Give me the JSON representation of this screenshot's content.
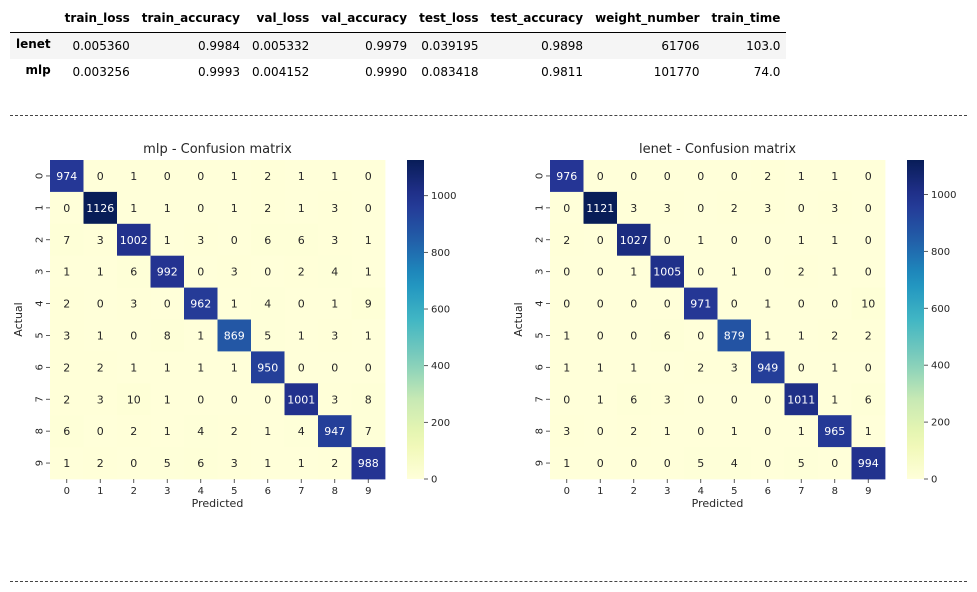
{
  "metrics_table": {
    "columns": [
      "train_loss",
      "train_accuracy",
      "val_loss",
      "val_accuracy",
      "test_loss",
      "test_accuracy",
      "weight_number",
      "train_time"
    ],
    "rows": [
      {
        "model": "lenet",
        "values": [
          "0.005360",
          "0.9984",
          "0.005332",
          "0.9979",
          "0.039195",
          "0.9898",
          "61706",
          "103.0"
        ]
      },
      {
        "model": "mlp",
        "values": [
          "0.003256",
          "0.9993",
          "0.004152",
          "0.9990",
          "0.083418",
          "0.9811",
          "101770",
          "74.0"
        ]
      }
    ]
  },
  "chart_data": [
    {
      "type": "heatmap",
      "title": "mlp - Confusion matrix",
      "xlabel": "Predicted",
      "ylabel": "Actual",
      "x_tick_labels": [
        "0",
        "1",
        "2",
        "3",
        "4",
        "5",
        "6",
        "7",
        "8",
        "9"
      ],
      "y_tick_labels": [
        "0",
        "1",
        "2",
        "3",
        "4",
        "5",
        "6",
        "7",
        "8",
        "9"
      ],
      "colormap": "YlGnBu",
      "colorbar_ticks": [
        "0",
        "200",
        "400",
        "600",
        "800",
        "1000"
      ],
      "vmin": 0,
      "vmax": 1126,
      "matrix": [
        [
          974,
          0,
          1,
          0,
          0,
          1,
          2,
          1,
          1,
          0
        ],
        [
          0,
          1126,
          1,
          1,
          0,
          1,
          2,
          1,
          3,
          0
        ],
        [
          7,
          3,
          1002,
          1,
          3,
          0,
          6,
          6,
          3,
          1
        ],
        [
          1,
          1,
          6,
          992,
          0,
          3,
          0,
          2,
          4,
          1
        ],
        [
          2,
          0,
          3,
          0,
          962,
          1,
          4,
          0,
          1,
          9
        ],
        [
          3,
          1,
          0,
          8,
          1,
          869,
          5,
          1,
          3,
          1
        ],
        [
          2,
          2,
          1,
          1,
          1,
          1,
          950,
          0,
          0,
          0
        ],
        [
          2,
          3,
          10,
          1,
          0,
          0,
          0,
          1001,
          3,
          8
        ],
        [
          6,
          0,
          2,
          1,
          4,
          2,
          1,
          4,
          947,
          7
        ],
        [
          1,
          2,
          0,
          5,
          6,
          3,
          1,
          1,
          2,
          988
        ]
      ]
    },
    {
      "type": "heatmap",
      "title": "lenet - Confusion matrix",
      "xlabel": "Predicted",
      "ylabel": "Actual",
      "x_tick_labels": [
        "0",
        "1",
        "2",
        "3",
        "4",
        "5",
        "6",
        "7",
        "8",
        "9"
      ],
      "y_tick_labels": [
        "0",
        "1",
        "2",
        "3",
        "4",
        "5",
        "6",
        "7",
        "8",
        "9"
      ],
      "colormap": "YlGnBu",
      "colorbar_ticks": [
        "0",
        "200",
        "400",
        "600",
        "800",
        "1000"
      ],
      "vmin": 0,
      "vmax": 1121,
      "matrix": [
        [
          976,
          0,
          0,
          0,
          0,
          0,
          2,
          1,
          1,
          0
        ],
        [
          0,
          1121,
          3,
          3,
          0,
          2,
          3,
          0,
          3,
          0
        ],
        [
          2,
          0,
          1027,
          0,
          1,
          0,
          0,
          1,
          1,
          0
        ],
        [
          0,
          0,
          1,
          1005,
          0,
          1,
          0,
          2,
          1,
          0
        ],
        [
          0,
          0,
          0,
          0,
          971,
          0,
          1,
          0,
          0,
          10
        ],
        [
          1,
          0,
          0,
          6,
          0,
          879,
          1,
          1,
          2,
          2
        ],
        [
          1,
          1,
          1,
          0,
          2,
          3,
          949,
          0,
          1,
          0
        ],
        [
          0,
          1,
          6,
          3,
          0,
          0,
          0,
          1011,
          1,
          6
        ],
        [
          3,
          0,
          2,
          1,
          0,
          1,
          0,
          1,
          965,
          1
        ],
        [
          1,
          0,
          0,
          0,
          5,
          4,
          0,
          5,
          0,
          994
        ]
      ]
    }
  ]
}
